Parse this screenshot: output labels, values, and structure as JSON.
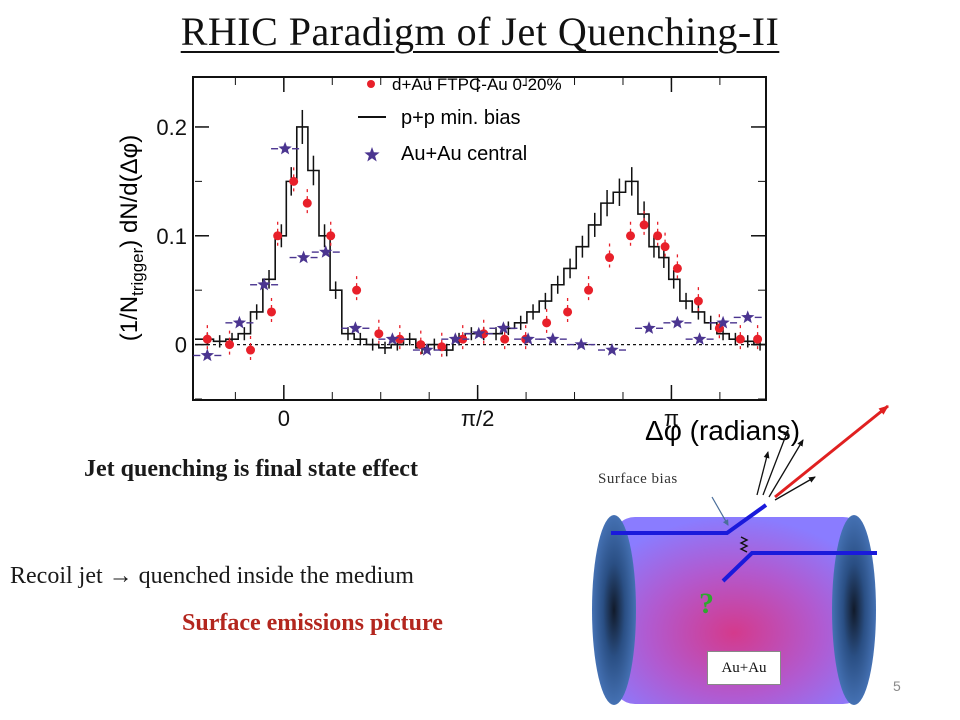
{
  "slide": {
    "title": "RHIC Paradigm of Jet Quenching-II",
    "caption_final_state": "Jet quenching is final state effect",
    "caption_recoil": "Recoil jet → quenched inside the medium",
    "caption_surface": "Surface emissions picture",
    "page_number": "5"
  },
  "diagram": {
    "surface_bias_label": "Surface bias",
    "question_mark": "?",
    "collision_label": "Au+Au",
    "colors": {
      "jet": "#1a1adb",
      "leading_particle": "#e02020",
      "question": "#2fa82f",
      "medium_center": "#d43a8c",
      "medium_edge": "#8a7cff",
      "nucleus": "#2f5f9e"
    }
  },
  "chart_data": {
    "type": "scatter",
    "title": "",
    "xlabel": "Δφ (radians)",
    "ylabel": "(1/N_trigger) dN/d(Δφ)",
    "ylabel_parts": {
      "base": "(1/N",
      "sub": "trigger",
      "rest": ") dN/d(Δφ)"
    },
    "xlim": [
      -0.72,
      3.9
    ],
    "ylim": [
      -0.05,
      0.245
    ],
    "x_ticks": [
      {
        "value": 0,
        "label": "0"
      },
      {
        "value": 1.5708,
        "label": "π/2"
      },
      {
        "value": 3.1416,
        "label": "π"
      }
    ],
    "y_ticks": [
      {
        "value": 0,
        "label": "0"
      },
      {
        "value": 0.1,
        "label": "0.1"
      },
      {
        "value": 0.2,
        "label": "0.2"
      }
    ],
    "reference_line": 0,
    "legend_position": "top-center",
    "colors": {
      "dAu": "#e8202a",
      "pp": "#111111",
      "AuAu": "#4b3590"
    },
    "series": [
      {
        "name": "d+Au FTPC-Au 0-20%",
        "marker": "circle",
        "x": [
          -0.62,
          -0.44,
          -0.27,
          -0.1,
          -0.05,
          0.08,
          0.19,
          0.38,
          0.59,
          0.77,
          0.94,
          1.11,
          1.28,
          1.45,
          1.62,
          1.79,
          1.96,
          2.13,
          2.3,
          2.47,
          2.64,
          2.81,
          2.92,
          3.03,
          3.09,
          3.19,
          3.36,
          3.53,
          3.7,
          3.84
        ],
        "y": [
          0.005,
          0.0,
          -0.005,
          0.03,
          0.1,
          0.15,
          0.13,
          0.1,
          0.05,
          0.01,
          0.005,
          0.0,
          -0.002,
          0.005,
          0.01,
          0.005,
          0.005,
          0.02,
          0.03,
          0.05,
          0.08,
          0.1,
          0.11,
          0.1,
          0.09,
          0.07,
          0.04,
          0.015,
          0.005,
          0.005
        ]
      },
      {
        "name": "p+p min. bias",
        "marker": "step-line",
        "x": [
          -0.62,
          -0.52,
          -0.42,
          -0.32,
          -0.22,
          -0.12,
          -0.02,
          0.06,
          0.15,
          0.24,
          0.33,
          0.42,
          0.52,
          0.62,
          0.72,
          0.82,
          0.92,
          1.02,
          1.12,
          1.22,
          1.32,
          1.42,
          1.52,
          1.62,
          1.72,
          1.82,
          1.92,
          2.02,
          2.12,
          2.22,
          2.32,
          2.42,
          2.52,
          2.62,
          2.72,
          2.82,
          2.92,
          3.0,
          3.08,
          3.16,
          3.26,
          3.36,
          3.46,
          3.56,
          3.66,
          3.76,
          3.86
        ],
        "y": [
          0.005,
          0.003,
          0.005,
          0.01,
          0.03,
          0.06,
          0.1,
          0.15,
          0.2,
          0.16,
          0.1,
          0.05,
          0.01,
          0.005,
          0.0,
          -0.003,
          0.0,
          0.005,
          -0.003,
          0.0,
          -0.005,
          0.005,
          0.01,
          0.01,
          0.01,
          0.015,
          0.02,
          0.03,
          0.04,
          0.055,
          0.07,
          0.09,
          0.11,
          0.13,
          0.14,
          0.15,
          0.12,
          0.09,
          0.08,
          0.06,
          0.04,
          0.03,
          0.02,
          0.01,
          0.005,
          0.003,
          0.0
        ]
      },
      {
        "name": "Au+Au central",
        "marker": "star",
        "x": [
          -0.62,
          -0.36,
          -0.16,
          0.01,
          0.16,
          0.34,
          0.58,
          0.88,
          1.16,
          1.39,
          1.58,
          1.78,
          1.98,
          2.18,
          2.41,
          2.66,
          2.96,
          3.19,
          3.37,
          3.56,
          3.76
        ],
        "y": [
          -0.01,
          0.02,
          0.055,
          0.18,
          0.08,
          0.085,
          0.015,
          0.005,
          -0.005,
          0.005,
          0.01,
          0.015,
          0.005,
          0.005,
          0.0,
          -0.005,
          0.015,
          0.02,
          0.005,
          0.02,
          0.025
        ]
      }
    ]
  }
}
